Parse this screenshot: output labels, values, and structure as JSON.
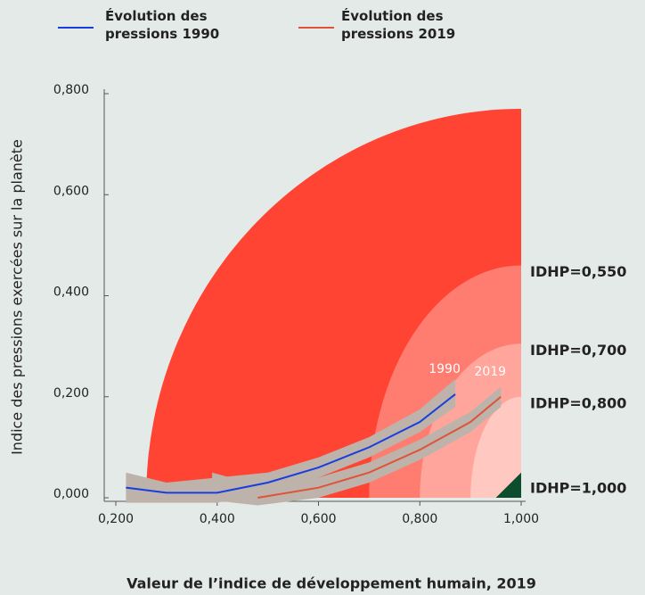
{
  "chart_data": {
    "type": "line",
    "y_label": "Indice des pressions exercées sur la planète",
    "x_label": "Valeur de l’indice de développement humain, 2019",
    "xlim": [
      0.2,
      1.0
    ],
    "xticks": [
      {
        "value": 0.2,
        "label": "0,200"
      },
      {
        "value": 0.4,
        "label": "0,400"
      },
      {
        "value": 0.6,
        "label": "0,600"
      },
      {
        "value": 0.8,
        "label": "0,800"
      },
      {
        "value": 1.0,
        "label": "1,000"
      }
    ],
    "ylim": [
      0,
      0.8
    ],
    "yticks": [
      {
        "value": 0,
        "label": "0,000"
      },
      {
        "value": 0.2,
        "label": "0,200"
      },
      {
        "value": 0.4,
        "label": "0,400"
      },
      {
        "value": 0.6,
        "label": "0,600"
      },
      {
        "value": 0.8,
        "label": "0,800"
      }
    ],
    "outer": {
      "color": "#ff4433",
      "rx": 0.74,
      "ry": 0.77
    },
    "bands": [
      {
        "label": "IDHP=0,550",
        "color": "#ff7d70",
        "rx": 0.3,
        "ry": 0.46
      },
      {
        "label": "IDHP=0,700",
        "color": "#ffa59b",
        "rx": 0.2,
        "ry": 0.305
      },
      {
        "label": "IDHP=0,800",
        "color": "#ffc8c1",
        "rx": 0.1,
        "ry": 0.2
      }
    ],
    "threshold": {
      "label": "IDHP=1,000",
      "color": "#0b4d2c",
      "width": 0.05,
      "height": 0.05
    },
    "band_color": "#bdb3aa",
    "series": [
      {
        "name": "Évolution des pressions 1990",
        "end_label": "1990",
        "color": "#1a3de0",
        "x": [
          0.22,
          0.3,
          0.4,
          0.5,
          0.6,
          0.7,
          0.8,
          0.87
        ],
        "values": [
          0.02,
          0.01,
          0.01,
          0.03,
          0.06,
          0.1,
          0.15,
          0.205
        ],
        "lower": [
          -0.01,
          -0.01,
          -0.01,
          0.01,
          0.04,
          0.08,
          0.13,
          0.18
        ],
        "upper": [
          0.05,
          0.03,
          0.04,
          0.05,
          0.08,
          0.12,
          0.175,
          0.235
        ]
      },
      {
        "name": "Évolution des pressions 2019",
        "end_label": "2019",
        "color": "#e0523a",
        "x": [
          0.39,
          0.48,
          0.6,
          0.7,
          0.8,
          0.9,
          0.96
        ],
        "values": [
          null,
          0.0,
          0.02,
          0.05,
          0.095,
          0.15,
          0.2
        ],
        "lower": [
          -0.005,
          -0.015,
          0.0,
          0.03,
          0.075,
          0.13,
          0.18
        ],
        "upper": [
          0.05,
          0.025,
          0.04,
          0.07,
          0.115,
          0.17,
          0.22
        ]
      }
    ]
  }
}
